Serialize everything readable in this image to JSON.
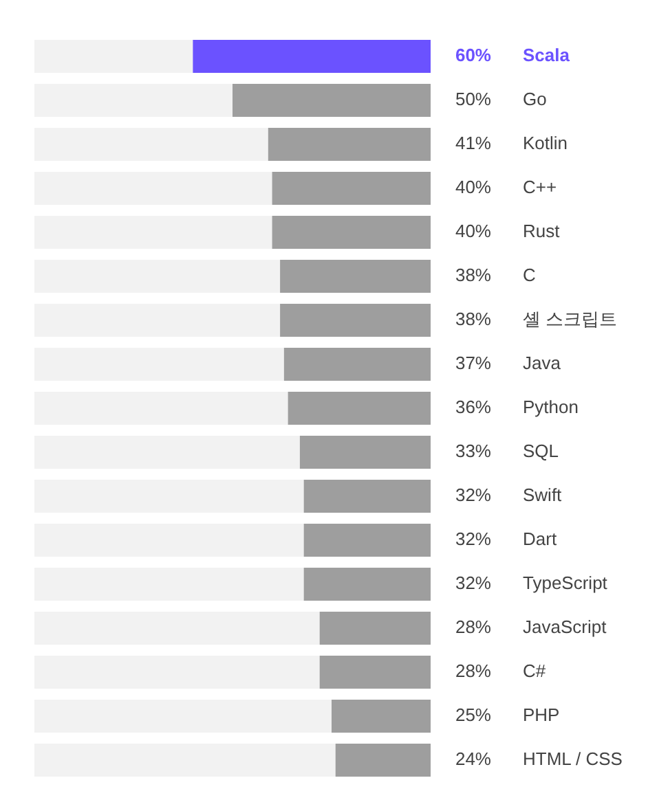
{
  "chart_data": {
    "type": "bar",
    "orientation": "horizontal",
    "xlim": [
      100,
      0
    ],
    "tick_labels": "y",
    "categories": [
      "Scala",
      "Go",
      "Kotlin",
      "C++",
      "Rust",
      "C",
      "셸 스크립트",
      "Java",
      "Python",
      "SQL",
      "Swift",
      "Dart",
      "TypeScript",
      "JavaScript",
      "C#",
      "PHP",
      "HTML / CSS"
    ],
    "values": [
      60,
      50,
      41,
      40,
      40,
      38,
      38,
      37,
      36,
      33,
      32,
      32,
      32,
      28,
      28,
      25,
      24
    ],
    "value_labels": [
      "60%",
      "50%",
      "41%",
      "40%",
      "40%",
      "38%",
      "38%",
      "37%",
      "36%",
      "33%",
      "32%",
      "32%",
      "32%",
      "28%",
      "28%",
      "25%",
      "24%"
    ],
    "colors": [
      "#6b52ff",
      "#9e9e9e",
      "#9e9e9e",
      "#9e9e9e",
      "#9e9e9e",
      "#9e9e9e",
      "#9e9e9e",
      "#9e9e9e",
      "#9e9e9e",
      "#9e9e9e",
      "#9e9e9e",
      "#9e9e9e",
      "#9e9e9e",
      "#9e9e9e",
      "#9e9e9e",
      "#9e9e9e",
      "#9e9e9e"
    ],
    "legend": false
  }
}
